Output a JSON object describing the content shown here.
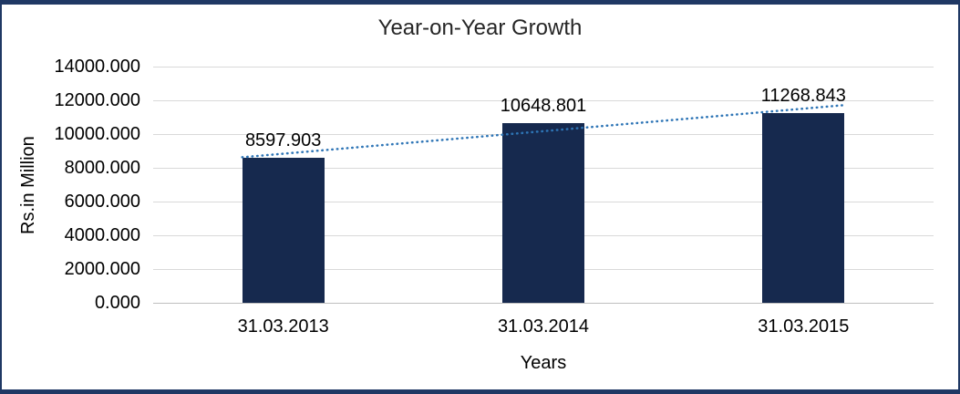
{
  "chart_data": {
    "type": "bar",
    "title": "Year-on-Year Growth",
    "xlabel": "Years",
    "ylabel": "Rs.in Million",
    "categories": [
      "31.03.2013",
      "31.03.2014",
      "31.03.2015"
    ],
    "values": [
      8597.903,
      10648.801,
      11268.843
    ],
    "data_labels": [
      "8597.903",
      "10648.801",
      "11268.843"
    ],
    "ylim": [
      0,
      14000
    ],
    "ytick_interval": 2000,
    "yticks": [
      {
        "value": 0,
        "label": "0.000"
      },
      {
        "value": 2000,
        "label": "2000.000"
      },
      {
        "value": 4000,
        "label": "4000.000"
      },
      {
        "value": 6000,
        "label": "6000.000"
      },
      {
        "value": 8000,
        "label": "8000.000"
      },
      {
        "value": 10000,
        "label": "10000.000"
      },
      {
        "value": 12000,
        "label": "12000.000"
      },
      {
        "value": 14000,
        "label": "14000.000"
      }
    ],
    "grid": true,
    "legend": "none",
    "trendline": {
      "type": "linear",
      "style": "dotted"
    },
    "colors": {
      "bar": "#16294e",
      "trendline": "#2e75b6",
      "frame_border": "#1f3864",
      "gridline": "#d9d9d9",
      "axis_line": "#bfbfbf"
    }
  }
}
